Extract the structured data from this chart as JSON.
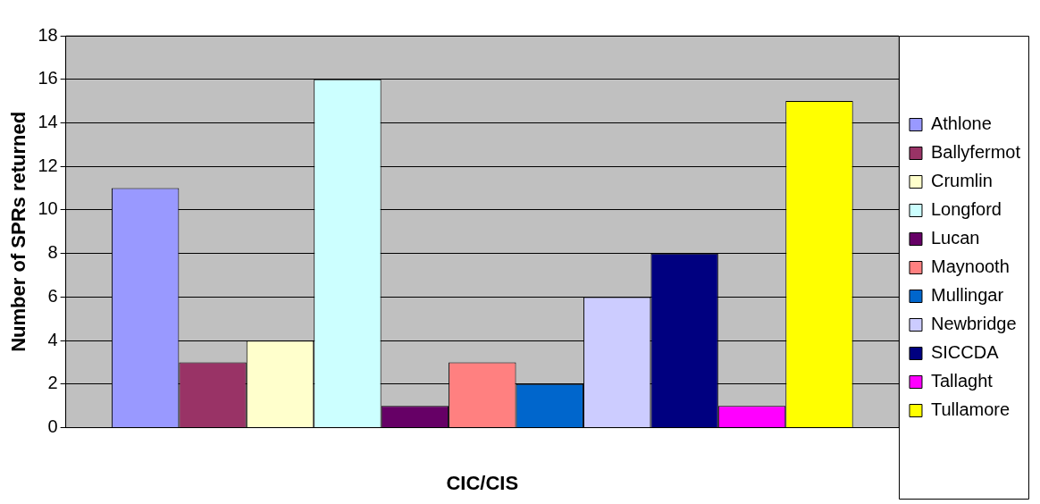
{
  "chart_data": {
    "type": "bar",
    "xlabel": "CIC/CIS",
    "ylabel": "Number of SPRs returned",
    "categories": [
      null
    ],
    "series": [
      {
        "name": "Athlone",
        "color": "#9999ff",
        "values": [
          11
        ]
      },
      {
        "name": "Ballyfermot",
        "color": "#993366",
        "values": [
          3
        ]
      },
      {
        "name": "Crumlin",
        "color": "#ffffcc",
        "values": [
          4
        ]
      },
      {
        "name": "Longford",
        "color": "#ccffff",
        "values": [
          16
        ]
      },
      {
        "name": "Lucan",
        "color": "#660066",
        "values": [
          1
        ]
      },
      {
        "name": "Maynooth",
        "color": "#ff8080",
        "values": [
          3
        ]
      },
      {
        "name": "Mullingar",
        "color": "#0066cc",
        "values": [
          2
        ]
      },
      {
        "name": "Newbridge",
        "color": "#ccccff",
        "values": [
          6
        ]
      },
      {
        "name": "SICCDA",
        "color": "#000080",
        "values": [
          8
        ]
      },
      {
        "name": "Tallaght",
        "color": "#ff00ff",
        "values": [
          1
        ]
      },
      {
        "name": "Tullamore",
        "color": "#ffff00",
        "values": [
          15
        ]
      }
    ],
    "ylim": [
      0,
      18
    ],
    "yticks": [
      0,
      2,
      4,
      6,
      8,
      10,
      12,
      14,
      16,
      18
    ],
    "grid": "y",
    "legend": "right"
  }
}
